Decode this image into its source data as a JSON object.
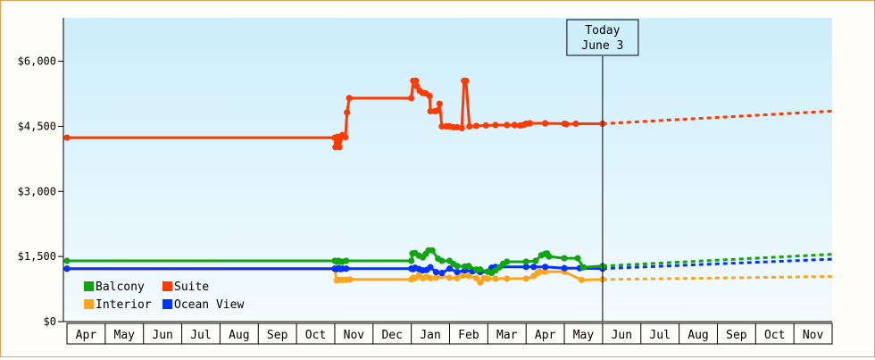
{
  "chart_data": {
    "type": "line",
    "ylim": [
      0,
      7000
    ],
    "y_ticks": [
      {
        "value": 0,
        "label": "$0"
      },
      {
        "value": 1500,
        "label": "$1,500"
      },
      {
        "value": 3000,
        "label": "$3,000"
      },
      {
        "value": 4500,
        "label": "$4,500"
      },
      {
        "value": 6000,
        "label": "$6,000"
      }
    ],
    "x_labels": [
      "Apr",
      "May",
      "Jun",
      "Jul",
      "Aug",
      "Sep",
      "Oct",
      "Nov",
      "Dec",
      "Jan",
      "Feb",
      "Mar",
      "Apr",
      "May",
      "Jun",
      "Jul",
      "Aug",
      "Sep",
      "Oct",
      "Nov"
    ],
    "today_marker": {
      "month_index": 14.0,
      "line1": "Today",
      "line2": "June 3"
    },
    "grid": false,
    "legend_position": "bottom-left",
    "series": [
      {
        "name": "Suite",
        "color": "#ff3a00",
        "points": [
          [
            0,
            4240
          ],
          [
            7.0,
            4240
          ],
          [
            7.02,
            4020
          ],
          [
            7.08,
            4260
          ],
          [
            7.12,
            4020
          ],
          [
            7.2,
            4300
          ],
          [
            7.28,
            4250
          ],
          [
            7.32,
            4820
          ],
          [
            7.38,
            5150
          ],
          [
            9.0,
            5150
          ],
          [
            9.05,
            5550
          ],
          [
            9.12,
            5550
          ],
          [
            9.15,
            5420
          ],
          [
            9.22,
            5320
          ],
          [
            9.3,
            5270
          ],
          [
            9.38,
            5260
          ],
          [
            9.48,
            5200
          ],
          [
            9.5,
            4850
          ],
          [
            9.62,
            4850
          ],
          [
            9.7,
            4870
          ],
          [
            9.74,
            5020
          ],
          [
            9.8,
            4500
          ],
          [
            9.92,
            4500
          ],
          [
            10.0,
            4500
          ],
          [
            10.1,
            4480
          ],
          [
            10.2,
            4480
          ],
          [
            10.32,
            4460
          ],
          [
            10.38,
            5550
          ],
          [
            10.43,
            5550
          ],
          [
            10.52,
            4500
          ],
          [
            10.7,
            4510
          ],
          [
            10.95,
            4520
          ],
          [
            11.2,
            4530
          ],
          [
            11.5,
            4530
          ],
          [
            11.7,
            4530
          ],
          [
            11.85,
            4520
          ],
          [
            11.95,
            4540
          ],
          [
            12.0,
            4560
          ],
          [
            12.1,
            4570
          ],
          [
            12.5,
            4570
          ],
          [
            13.0,
            4560
          ],
          [
            13.05,
            4550
          ],
          [
            13.3,
            4560
          ],
          [
            14.0,
            4560
          ]
        ],
        "projection": [
          [
            14.0,
            4560
          ],
          [
            20.0,
            4850
          ]
        ]
      },
      {
        "name": "Balcony",
        "color": "#11a611",
        "points": [
          [
            0,
            1400
          ],
          [
            7.0,
            1400
          ],
          [
            7.05,
            1380
          ],
          [
            7.1,
            1400
          ],
          [
            7.15,
            1380
          ],
          [
            7.2,
            1380
          ],
          [
            7.3,
            1400
          ],
          [
            9.0,
            1400
          ],
          [
            9.03,
            1570
          ],
          [
            9.1,
            1580
          ],
          [
            9.2,
            1520
          ],
          [
            9.3,
            1480
          ],
          [
            9.38,
            1560
          ],
          [
            9.45,
            1640
          ],
          [
            9.55,
            1640
          ],
          [
            9.7,
            1450
          ],
          [
            9.8,
            1400
          ],
          [
            10.0,
            1400
          ],
          [
            10.1,
            1330
          ],
          [
            10.2,
            1280
          ],
          [
            10.4,
            1270
          ],
          [
            10.5,
            1280
          ],
          [
            10.7,
            1200
          ],
          [
            10.8,
            1200
          ],
          [
            11.0,
            1150
          ],
          [
            11.1,
            1120
          ],
          [
            11.2,
            1180
          ],
          [
            11.3,
            1250
          ],
          [
            11.4,
            1330
          ],
          [
            11.5,
            1380
          ],
          [
            12.0,
            1380
          ],
          [
            12.25,
            1400
          ],
          [
            12.4,
            1530
          ],
          [
            12.5,
            1560
          ],
          [
            12.55,
            1570
          ],
          [
            12.6,
            1500
          ],
          [
            13.0,
            1460
          ],
          [
            13.35,
            1460
          ],
          [
            13.5,
            1250
          ],
          [
            14.0,
            1280
          ]
        ],
        "projection": [
          [
            14.0,
            1280
          ],
          [
            20.0,
            1550
          ]
        ]
      },
      {
        "name": "Ocean View",
        "color": "#0033ff",
        "points": [
          [
            0,
            1220
          ],
          [
            7.0,
            1220
          ],
          [
            7.05,
            1210
          ],
          [
            7.1,
            1230
          ],
          [
            7.15,
            1210
          ],
          [
            7.2,
            1220
          ],
          [
            7.3,
            1220
          ],
          [
            9.0,
            1220
          ],
          [
            9.05,
            1210
          ],
          [
            9.1,
            1240
          ],
          [
            9.2,
            1210
          ],
          [
            9.3,
            1180
          ],
          [
            9.4,
            1190
          ],
          [
            9.5,
            1250
          ],
          [
            9.65,
            1140
          ],
          [
            9.8,
            1120
          ],
          [
            10.0,
            1220
          ],
          [
            10.2,
            1140
          ],
          [
            10.4,
            1180
          ],
          [
            10.6,
            1160
          ],
          [
            10.8,
            1140
          ],
          [
            11.0,
            1150
          ],
          [
            11.1,
            1240
          ],
          [
            11.2,
            1260
          ],
          [
            12.0,
            1260
          ],
          [
            12.2,
            1260
          ],
          [
            12.5,
            1260
          ],
          [
            13.0,
            1230
          ],
          [
            13.4,
            1230
          ],
          [
            14.0,
            1220
          ]
        ],
        "projection": [
          [
            14.0,
            1220
          ],
          [
            20.0,
            1440
          ]
        ]
      },
      {
        "name": "Interior",
        "color": "#ffa41c",
        "points": [
          [
            0,
            1210
          ],
          [
            7.0,
            1210
          ],
          [
            7.05,
            950
          ],
          [
            7.1,
            960
          ],
          [
            7.2,
            960
          ],
          [
            7.3,
            960
          ],
          [
            7.4,
            970
          ],
          [
            9.0,
            970
          ],
          [
            9.05,
            1010
          ],
          [
            9.1,
            1000
          ],
          [
            9.2,
            1070
          ],
          [
            9.3,
            1000
          ],
          [
            9.4,
            1030
          ],
          [
            9.5,
            1000
          ],
          [
            9.65,
            1010
          ],
          [
            9.8,
            1050
          ],
          [
            10.0,
            1010
          ],
          [
            10.2,
            1000
          ],
          [
            10.35,
            1060
          ],
          [
            10.5,
            1050
          ],
          [
            10.7,
            1000
          ],
          [
            10.8,
            900
          ],
          [
            10.9,
            1000
          ],
          [
            11.0,
            990
          ],
          [
            11.2,
            990
          ],
          [
            11.5,
            990
          ],
          [
            12.0,
            990
          ],
          [
            12.2,
            1050
          ],
          [
            12.3,
            1120
          ],
          [
            12.35,
            1150
          ],
          [
            12.5,
            1150
          ],
          [
            13.0,
            1150
          ],
          [
            13.45,
            960
          ],
          [
            14.0,
            970
          ]
        ],
        "projection": [
          [
            14.0,
            970
          ],
          [
            20.0,
            1040
          ]
        ]
      }
    ],
    "legend": [
      {
        "label": "Balcony",
        "color": "#11a611"
      },
      {
        "label": "Suite",
        "color": "#ff3a00"
      },
      {
        "label": "Interior",
        "color": "#ffa41c"
      },
      {
        "label": "Ocean View",
        "color": "#0033ff"
      }
    ]
  },
  "colors": {
    "plot_top": "#cdeefb",
    "plot_bottom": "#f4fbfe",
    "frame": "#e2a25a"
  }
}
